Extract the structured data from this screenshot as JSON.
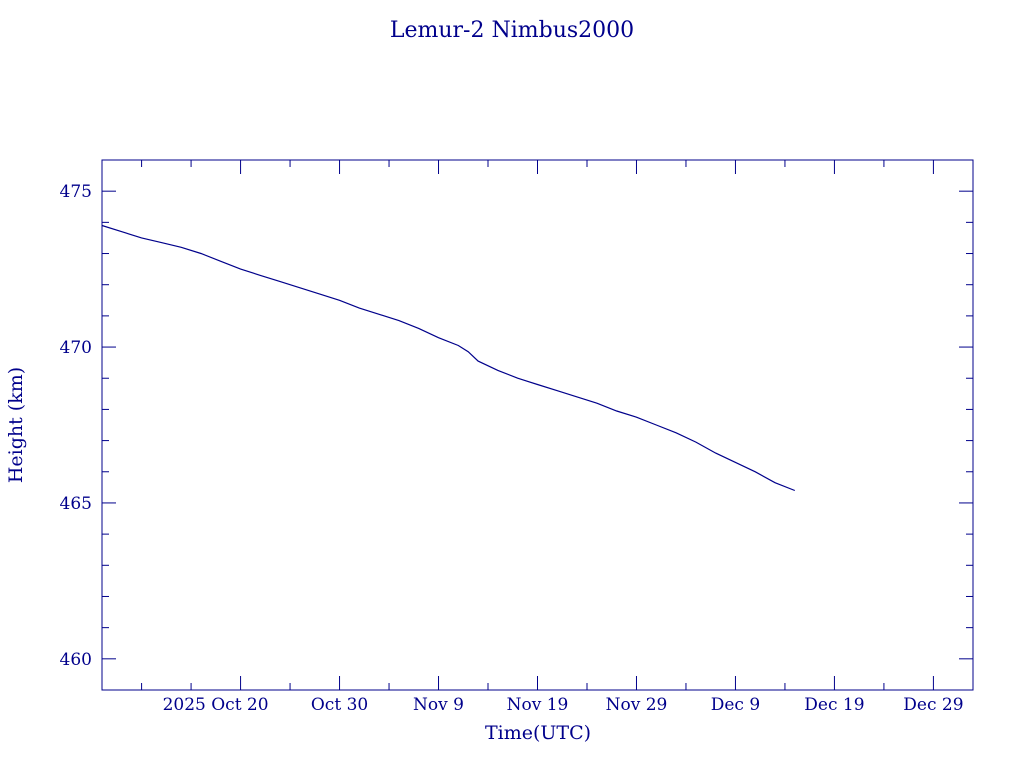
{
  "chart_data": {
    "type": "line",
    "title": "Lemur-2 Nimbus2000",
    "xlabel": "Time(UTC)",
    "ylabel": "Height (km)",
    "color": "#00008b",
    "x_tick_labels": [
      "2025 Oct 20",
      "Oct 30",
      "Nov  9",
      "Nov 19",
      "Nov 29",
      "Dec  9",
      "Dec 19",
      "Dec 29"
    ],
    "y_tick_labels": [
      "460",
      "465",
      "470",
      "475"
    ],
    "xlim": [
      "2025-10-06",
      "2026-01-02"
    ],
    "ylim": [
      459,
      476
    ],
    "y_major_step": 5,
    "y_minor_step": 1,
    "x_minor_step_days": 5,
    "grid": false,
    "series": [
      {
        "x": [
          "2025-10-06",
          "2025-10-08",
          "2025-10-10",
          "2025-10-12",
          "2025-10-14",
          "2025-10-16",
          "2025-10-18",
          "2025-10-20",
          "2025-10-22",
          "2025-10-24",
          "2025-10-26",
          "2025-10-28",
          "2025-10-30",
          "2025-11-01",
          "2025-11-03",
          "2025-11-05",
          "2025-11-07",
          "2025-11-09",
          "2025-11-11",
          "2025-11-12",
          "2025-11-13",
          "2025-11-15",
          "2025-11-17",
          "2025-11-19",
          "2025-11-21",
          "2025-11-23",
          "2025-11-25",
          "2025-11-27",
          "2025-11-29",
          "2025-12-01",
          "2025-12-03",
          "2025-12-05",
          "2025-12-07",
          "2025-12-09",
          "2025-12-11",
          "2025-12-13",
          "2025-12-15"
        ],
        "y": [
          473.9,
          473.7,
          473.5,
          473.35,
          473.2,
          473.0,
          472.75,
          472.5,
          472.3,
          472.1,
          471.9,
          471.7,
          471.5,
          471.25,
          471.05,
          470.85,
          470.6,
          470.3,
          470.05,
          469.85,
          469.55,
          469.25,
          469.0,
          468.8,
          468.6,
          468.4,
          468.2,
          467.95,
          467.75,
          467.5,
          467.25,
          466.95,
          466.6,
          466.3,
          466.0,
          465.65,
          465.4
        ]
      }
    ]
  }
}
